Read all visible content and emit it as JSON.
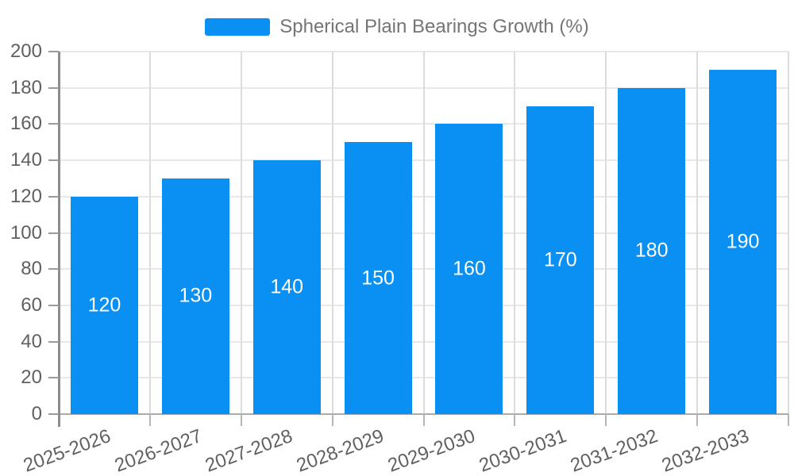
{
  "legend": {
    "label": "Spherical Plain Bearings Growth (%)"
  },
  "chart_data": {
    "type": "bar",
    "title": "Spherical Plain Bearings Growth (%)",
    "series_name": "Spherical Plain Bearings Growth (%)",
    "categories": [
      "2025-2026",
      "2026-2027",
      "2027-2028",
      "2028-2029",
      "2029-2030",
      "2030-2031",
      "2031-2032",
      "2032-2033"
    ],
    "values": [
      120,
      130,
      140,
      150,
      160,
      170,
      180,
      190
    ],
    "bar_labels": [
      "120",
      "130",
      "140",
      "150",
      "160",
      "170",
      "180",
      "190"
    ],
    "xlabel": "",
    "ylabel": "",
    "ylim": [
      0,
      200
    ],
    "yticks": [
      0,
      20,
      40,
      60,
      80,
      100,
      120,
      140,
      160,
      180,
      200
    ],
    "grid": true,
    "legend_position": "top",
    "x_label_rotation_deg": -20,
    "colors": {
      "bar": "#0a8ff2",
      "bar_label": "#ffffff",
      "axis_text": "#606060",
      "legend_text": "#757575",
      "h_gridline": "#e8e8e8",
      "v_gridline": "#dcdcdc",
      "axis_line": "#9a9a9a"
    }
  }
}
